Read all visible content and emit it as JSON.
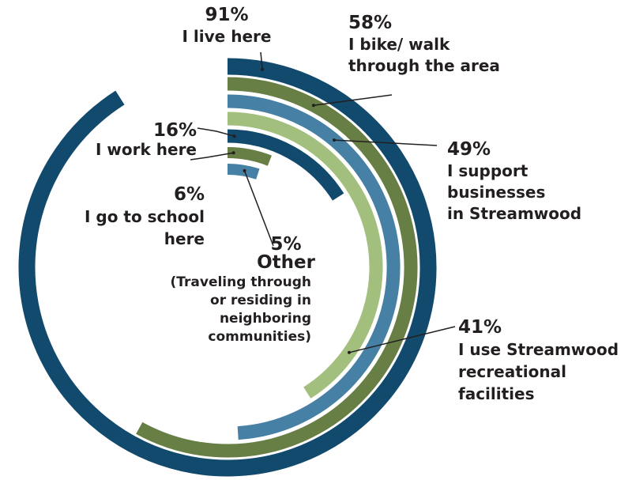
{
  "chart_data": {
    "type": "radial-bar",
    "title": "",
    "max_value": 100,
    "series": [
      {
        "percent_label": "91%",
        "value": 91,
        "lines": [
          "I live here"
        ],
        "color": "#124a6e"
      },
      {
        "percent_label": "58%",
        "value": 58,
        "lines": [
          "I bike/ walk",
          "through the area"
        ],
        "color": "#677e45"
      },
      {
        "percent_label": "49%",
        "value": 49,
        "lines": [
          "I support",
          " businesses",
          " in Streamwood"
        ],
        "color": "#4680a4"
      },
      {
        "percent_label": "41%",
        "value": 41,
        "lines": [
          "I use Streamwood",
          "recreational",
          "facilities"
        ],
        "color": "#a3bf7e"
      },
      {
        "percent_label": "16%",
        "value": 16,
        "lines": [
          "I work here"
        ],
        "color": "#124a6e"
      },
      {
        "percent_label": "6%",
        "value": 6,
        "lines": [
          "I go to school",
          "here"
        ],
        "color": "#677e45"
      },
      {
        "percent_label": "5%",
        "value": 5,
        "lines": [
          "Other"
        ],
        "note_lines": [
          "(Traveling through",
          "or residing in",
          "neighboring",
          "communities)"
        ],
        "color": "#4680a4"
      }
    ]
  }
}
